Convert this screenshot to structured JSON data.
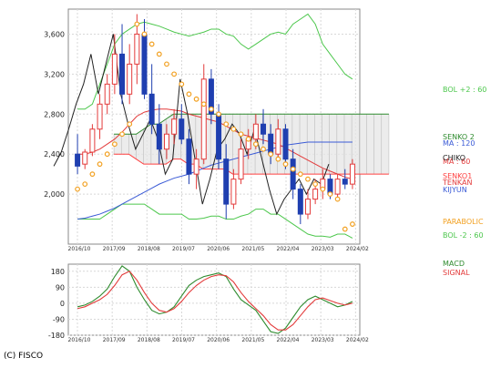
{
  "chart_data": [
    {
      "type": "candlestick",
      "panel": "price",
      "x_tick_labels": [
        "2016/10",
        "2017/09",
        "2018/08",
        "2019/07",
        "2020/06",
        "2021/05",
        "2022/04",
        "2023/03",
        "2024/02"
      ],
      "y_tick_labels": [
        "2,000",
        "2,400",
        "2,800",
        "3,200",
        "3,600"
      ],
      "ylim": [
        1500,
        3850
      ],
      "candles": [
        {
          "o": 2400,
          "h": 2600,
          "l": 2200,
          "c": 2280
        },
        {
          "o": 2300,
          "h": 2450,
          "l": 2250,
          "c": 2420
        },
        {
          "o": 2420,
          "h": 2700,
          "l": 2380,
          "c": 2650
        },
        {
          "o": 2650,
          "h": 3000,
          "l": 2550,
          "c": 2900
        },
        {
          "o": 2900,
          "h": 3200,
          "l": 2800,
          "c": 3100
        },
        {
          "o": 3100,
          "h": 3600,
          "l": 3000,
          "c": 3400
        },
        {
          "o": 3400,
          "h": 3700,
          "l": 2900,
          "c": 3000
        },
        {
          "o": 3000,
          "h": 3500,
          "l": 2900,
          "c": 3300
        },
        {
          "o": 3300,
          "h": 3800,
          "l": 3100,
          "c": 3600
        },
        {
          "o": 3600,
          "h": 3750,
          "l": 2950,
          "c": 3000
        },
        {
          "o": 3000,
          "h": 3300,
          "l": 2600,
          "c": 2700
        },
        {
          "o": 2700,
          "h": 2900,
          "l": 2300,
          "c": 2450
        },
        {
          "o": 2450,
          "h": 2700,
          "l": 2350,
          "c": 2600
        },
        {
          "o": 2600,
          "h": 2850,
          "l": 2500,
          "c": 2750
        },
        {
          "o": 2750,
          "h": 2900,
          "l": 2500,
          "c": 2550
        },
        {
          "o": 2550,
          "h": 2650,
          "l": 2100,
          "c": 2200
        },
        {
          "o": 2200,
          "h": 2450,
          "l": 2050,
          "c": 2350
        },
        {
          "o": 2350,
          "h": 3300,
          "l": 2300,
          "c": 3150
        },
        {
          "o": 3150,
          "h": 3250,
          "l": 2700,
          "c": 2800
        },
        {
          "o": 2800,
          "h": 2900,
          "l": 2250,
          "c": 2350
        },
        {
          "o": 2350,
          "h": 2500,
          "l": 1750,
          "c": 1900
        },
        {
          "o": 1900,
          "h": 2250,
          "l": 1850,
          "c": 2150
        },
        {
          "o": 2150,
          "h": 2550,
          "l": 2100,
          "c": 2450
        },
        {
          "o": 2450,
          "h": 2650,
          "l": 2350,
          "c": 2550
        },
        {
          "o": 2550,
          "h": 2800,
          "l": 2450,
          "c": 2700
        },
        {
          "o": 2700,
          "h": 2850,
          "l": 2500,
          "c": 2600
        },
        {
          "o": 2600,
          "h": 2700,
          "l": 2300,
          "c": 2400
        },
        {
          "o": 2400,
          "h": 2750,
          "l": 2350,
          "c": 2650
        },
        {
          "o": 2650,
          "h": 2700,
          "l": 2250,
          "c": 2350
        },
        {
          "o": 2350,
          "h": 2450,
          "l": 1950,
          "c": 2050
        },
        {
          "o": 2050,
          "h": 2100,
          "l": 1700,
          "c": 1800
        },
        {
          "o": 1800,
          "h": 2050,
          "l": 1750,
          "c": 1950
        },
        {
          "o": 1950,
          "h": 2150,
          "l": 1900,
          "c": 2050
        },
        {
          "o": 2050,
          "h": 2250,
          "l": 1950,
          "c": 2150
        },
        {
          "o": 2150,
          "h": 2200,
          "l": 1950,
          "c": 2000
        },
        {
          "o": 2000,
          "h": 2200,
          "l": 1950,
          "c": 2150
        },
        {
          "o": 2150,
          "h": 2250,
          "l": 2050,
          "c": 2100
        },
        {
          "o": 2100,
          "h": 2350,
          "l": 2050,
          "c": 2300
        }
      ],
      "bollinger_upper": [
        2850,
        2850,
        2900,
        3100,
        3300,
        3500,
        3600,
        3650,
        3700,
        3720,
        3700,
        3680,
        3650,
        3620,
        3600,
        3580,
        3600,
        3620,
        3650,
        3650,
        3600,
        3580,
        3500,
        3450,
        3500,
        3550,
        3600,
        3620,
        3600,
        3700,
        3750,
        3800,
        3700,
        3500,
        3400,
        3300,
        3200,
        3150
      ],
      "bollinger_lower": [
        1750,
        1750,
        1750,
        1750,
        1800,
        1850,
        1900,
        1900,
        1900,
        1900,
        1850,
        1800,
        1800,
        1800,
        1800,
        1750,
        1750,
        1760,
        1780,
        1780,
        1750,
        1750,
        1780,
        1800,
        1850,
        1850,
        1800,
        1800,
        1750,
        1700,
        1650,
        1600,
        1580,
        1580,
        1570,
        1600,
        1600,
        1560
      ],
      "parabolic": [
        2050,
        2100,
        2200,
        2300,
        2400,
        2500,
        2600,
        2700,
        3700,
        3600,
        3500,
        3400,
        3300,
        3200,
        3100,
        3000,
        2950,
        2900,
        2850,
        2800,
        2700,
        2650,
        2600,
        2550,
        2500,
        2450,
        2400,
        2350,
        2300,
        2250,
        2200,
        2150,
        2100,
        2050,
        2000,
        1950,
        1650,
        1700
      ],
      "moving_average_120": [
        1750,
        1760,
        1780,
        1800,
        1830,
        1860,
        1900,
        1940,
        1980,
        2020,
        2060,
        2100,
        2130,
        2160,
        2180,
        2200,
        2230,
        2260,
        2290,
        2310,
        2330,
        2350,
        2370,
        2390,
        2410,
        2430,
        2450,
        2470,
        2490,
        2500,
        2510,
        2520,
        2520,
        2520,
        2520,
        2520,
        2520,
        2520
      ],
      "moving_average_60": [
        2400,
        2400,
        2420,
        2450,
        2500,
        2550,
        2620,
        2700,
        2780,
        2820,
        2840,
        2850,
        2850,
        2840,
        2830,
        2800,
        2780,
        2760,
        2740,
        2720,
        2680,
        2640,
        2600,
        2580,
        2560,
        2540,
        2520,
        2500,
        2460,
        2420,
        2380,
        2340,
        2300,
        2260,
        2230,
        2200,
        2170,
        2150
      ],
      "kumo_cloud_top": [
        2600,
        2600,
        2600,
        2600,
        2650,
        2700,
        2700,
        2750,
        2800,
        2800,
        2800,
        2800,
        2800,
        2800,
        2800,
        2800,
        2800,
        2800,
        2800,
        2800,
        2800,
        2800,
        2800,
        2800,
        2800,
        2800,
        2800,
        2800,
        2800,
        2800,
        2800,
        2800,
        2800,
        2800,
        2800,
        2800,
        2800,
        2800
      ],
      "kumo_cloud_bottom": [
        2400,
        2400,
        2400,
        2350,
        2300,
        2300,
        2300,
        2300,
        2350,
        2350,
        2300,
        2300,
        2250,
        2250,
        2250,
        2250,
        2200,
        2200,
        2200,
        2200,
        2200,
        2200,
        2200,
        2200,
        2200,
        2200,
        2200,
        2200,
        2200,
        2200,
        2200,
        2200,
        2200,
        2200,
        2200,
        2200,
        2200,
        2200
      ],
      "legend": [
        {
          "label": "BOL +2 : 60",
          "color": "#4cc74c"
        },
        {
          "label": "SENKO 2",
          "color": "#2e8b2e"
        },
        {
          "label": "MA : 120",
          "color": "#3b5bd6"
        },
        {
          "label": "MA : 60",
          "color": "#e33b3b"
        },
        {
          "label": "CHIKO",
          "color": "#222222"
        },
        {
          "label": "SENKO1",
          "color": "#ff4040"
        },
        {
          "label": "TENKAN",
          "color": "#e33b3b"
        },
        {
          "label": "KIJYUN",
          "color": "#3b5bd6"
        },
        {
          "label": "PARABOLIC",
          "color": "#f2a020"
        },
        {
          "label": "BOL -2 : 60",
          "color": "#4cc74c"
        }
      ]
    },
    {
      "type": "line",
      "panel": "macd",
      "x_tick_labels": [
        "2016/10",
        "2017/09",
        "2018/08",
        "2019/07",
        "2020/06",
        "2021/05",
        "2022/04",
        "2023/03",
        "2024/02"
      ],
      "y_tick_labels": [
        "180",
        "90",
        "0",
        "-90",
        "-180"
      ],
      "ylim": [
        -180,
        220
      ],
      "series": [
        {
          "name": "MACD",
          "color": "#2e8b2e",
          "values": [
            -20,
            -10,
            10,
            40,
            80,
            150,
            210,
            180,
            90,
            20,
            -40,
            -60,
            -50,
            -20,
            40,
            100,
            130,
            150,
            160,
            170,
            150,
            80,
            20,
            -10,
            -40,
            -100,
            -160,
            -170,
            -140,
            -80,
            -20,
            20,
            40,
            20,
            0,
            -20,
            -10,
            10
          ]
        },
        {
          "name": "SIGNAL",
          "color": "#e33b3b",
          "values": [
            -30,
            -20,
            0,
            20,
            50,
            100,
            160,
            180,
            130,
            60,
            0,
            -40,
            -50,
            -30,
            10,
            60,
            100,
            130,
            150,
            160,
            155,
            120,
            60,
            10,
            -30,
            -70,
            -120,
            -150,
            -150,
            -120,
            -70,
            -20,
            20,
            30,
            15,
            0,
            -10,
            0
          ]
        }
      ],
      "legend": [
        {
          "label": "MACD",
          "color": "#2e8b2e"
        },
        {
          "label": "SIGNAL",
          "color": "#e33b3b"
        }
      ]
    }
  ],
  "copyright": "(C) FISCO"
}
